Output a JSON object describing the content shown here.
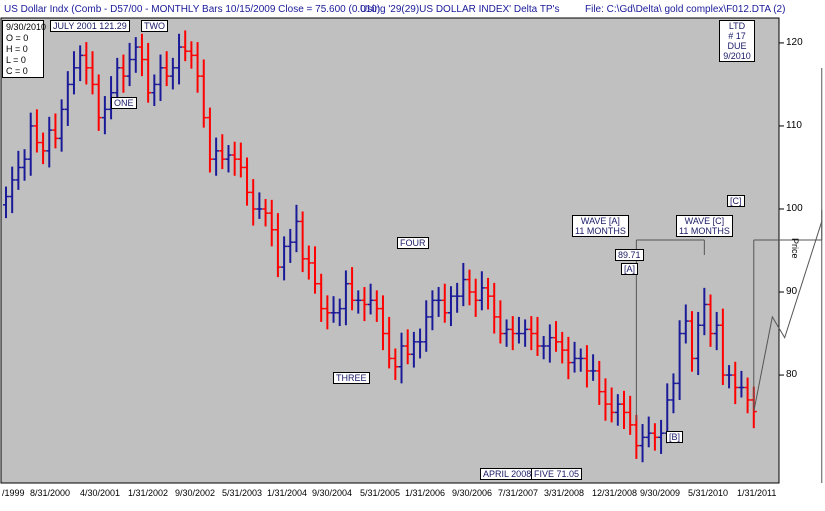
{
  "header": {
    "title": "US Dollar Indx (Comb - D57/00  - MONTHLY Bars  10/15/2009 Close = 75.600 (0.010)",
    "using": "Using '29(29)US DOLLAR INDEX' Delta TP's",
    "file": "File: C:\\Gd\\Delta\\ gold complex\\F012.DTA (2)"
  },
  "ohlc_box": {
    "date": "9/30/2010",
    "o": "O = 0",
    "h": "H = 0",
    "l": "L = 0",
    "c": "C = 0"
  },
  "annotations": {
    "july2001": "JULY 2001  121.29",
    "one": "ONE",
    "two": "TWO",
    "three": "THREE",
    "four": "FOUR",
    "april2008": "APRIL 2008",
    "five": "FIVE  71.05",
    "wave_a_1": "WAVE [A]",
    "wave_a_2": "11 MONTHS",
    "wave_c_1": "WAVE [C]",
    "wave_c_2": "11 MONTHS",
    "price_8971": "89.71",
    "a_mark": "[A]",
    "b_mark": "[B]",
    "c_mark": "[C]",
    "ltd_1": "LTD",
    "ltd_2": "# 17",
    "ltd_3": "DUE",
    "ltd_4": "9/2010"
  },
  "chart_data": {
    "type": "ohlc",
    "title": "US Dollar Indx - MONTHLY Bars",
    "ylabel": "Price",
    "ylim": [
      67,
      123
    ],
    "yticks": [
      80,
      90,
      100,
      110,
      120
    ],
    "xticks": [
      "/1999",
      "8/31/2000",
      "4/30/2001",
      "1/31/2002",
      "9/30/2002",
      "5/31/2003",
      "1/31/2004",
      "9/30/2004",
      "5/31/2005",
      "1/31/2006",
      "9/30/2006",
      "7/31/2007",
      "3/31/2008",
      "12/31/2008",
      "9/30/2009",
      "5/31/2010",
      "1/31/2011"
    ],
    "colors": {
      "up": "#1a1a99",
      "down": "#ff0000",
      "background": "#c0c0c0"
    },
    "bars": [
      {
        "date": "1999-09",
        "close": 101.5
      },
      {
        "date": "1999-10",
        "close": 103.5
      },
      {
        "date": "1999-11",
        "close": 105
      },
      {
        "date": "1999-12",
        "close": 106
      },
      {
        "date": "2000-01",
        "close": 110
      },
      {
        "date": "2000-02",
        "close": 108
      },
      {
        "date": "2000-03",
        "close": 107
      },
      {
        "date": "2000-04",
        "close": 109.5
      },
      {
        "date": "2000-05",
        "close": 108.5
      },
      {
        "date": "2000-06",
        "close": 112
      },
      {
        "date": "2000-07",
        "close": 115
      },
      {
        "date": "2000-08",
        "close": 117
      },
      {
        "date": "2000-09",
        "close": 118.5
      },
      {
        "date": "2000-10",
        "close": 117
      },
      {
        "date": "2000-11",
        "close": 115
      },
      {
        "date": "2000-12",
        "close": 111
      },
      {
        "date": "2001-01",
        "close": 112
      },
      {
        "date": "2001-02",
        "close": 114
      },
      {
        "date": "2001-03",
        "close": 117
      },
      {
        "date": "2001-04",
        "close": 116
      },
      {
        "date": "2001-05",
        "close": 118
      },
      {
        "date": "2001-06",
        "close": 119.5
      },
      {
        "date": "2001-07",
        "close": 118
      },
      {
        "date": "2001-08",
        "close": 114
      },
      {
        "date": "2001-09",
        "close": 115
      },
      {
        "date": "2001-10",
        "close": 117
      },
      {
        "date": "2001-11",
        "close": 116
      },
      {
        "date": "2001-12",
        "close": 117
      },
      {
        "date": "2002-01",
        "close": 119.5
      },
      {
        "date": "2002-02",
        "close": 119
      },
      {
        "date": "2002-03",
        "close": 118.5
      },
      {
        "date": "2002-04",
        "close": 116
      },
      {
        "date": "2002-05",
        "close": 111
      },
      {
        "date": "2002-06",
        "close": 106
      },
      {
        "date": "2002-07",
        "close": 107
      },
      {
        "date": "2002-08",
        "close": 106
      },
      {
        "date": "2002-09",
        "close": 106.5
      },
      {
        "date": "2002-10",
        "close": 106
      },
      {
        "date": "2002-11",
        "close": 105
      },
      {
        "date": "2002-12",
        "close": 102
      },
      {
        "date": "2003-01",
        "close": 100
      },
      {
        "date": "2003-02",
        "close": 100
      },
      {
        "date": "2003-03",
        "close": 99.5
      },
      {
        "date": "2003-04",
        "close": 97.5
      },
      {
        "date": "2003-05",
        "close": 93
      },
      {
        "date": "2003-06",
        "close": 95.5
      },
      {
        "date": "2003-07",
        "close": 96
      },
      {
        "date": "2003-08",
        "close": 98.5
      },
      {
        "date": "2003-09",
        "close": 94
      },
      {
        "date": "2003-10",
        "close": 93.5
      },
      {
        "date": "2003-11",
        "close": 91
      },
      {
        "date": "2003-12",
        "close": 88
      },
      {
        "date": "2004-01",
        "close": 87.5
      },
      {
        "date": "2004-02",
        "close": 87.5
      },
      {
        "date": "2004-03",
        "close": 88
      },
      {
        "date": "2004-04",
        "close": 91
      },
      {
        "date": "2004-05",
        "close": 89
      },
      {
        "date": "2004-06",
        "close": 89
      },
      {
        "date": "2004-07",
        "close": 88.5
      },
      {
        "date": "2004-08",
        "close": 89
      },
      {
        "date": "2004-09",
        "close": 88
      },
      {
        "date": "2004-10",
        "close": 85
      },
      {
        "date": "2004-11",
        "close": 82
      },
      {
        "date": "2004-12",
        "close": 81
      },
      {
        "date": "2005-01",
        "close": 83.5
      },
      {
        "date": "2005-02",
        "close": 82.5
      },
      {
        "date": "2005-03",
        "close": 84
      },
      {
        "date": "2005-04",
        "close": 84
      },
      {
        "date": "2005-05",
        "close": 87
      },
      {
        "date": "2005-06",
        "close": 89
      },
      {
        "date": "2005-07",
        "close": 89
      },
      {
        "date": "2005-08",
        "close": 87.5
      },
      {
        "date": "2005-09",
        "close": 89.5
      },
      {
        "date": "2005-10",
        "close": 89.5
      },
      {
        "date": "2005-11",
        "close": 91.5
      },
      {
        "date": "2005-12",
        "close": 90
      },
      {
        "date": "2006-01",
        "close": 89
      },
      {
        "date": "2006-02",
        "close": 90.5
      },
      {
        "date": "2006-03",
        "close": 89.5
      },
      {
        "date": "2006-04",
        "close": 87
      },
      {
        "date": "2006-05",
        "close": 85
      },
      {
        "date": "2006-06",
        "close": 85.5
      },
      {
        "date": "2006-07",
        "close": 85
      },
      {
        "date": "2006-08",
        "close": 85
      },
      {
        "date": "2006-09",
        "close": 85.5
      },
      {
        "date": "2006-10",
        "close": 85
      },
      {
        "date": "2006-11",
        "close": 83.5
      },
      {
        "date": "2006-12",
        "close": 83.5
      },
      {
        "date": "2007-01",
        "close": 84.5
      },
      {
        "date": "2007-02",
        "close": 84
      },
      {
        "date": "2007-03",
        "close": 83
      },
      {
        "date": "2007-04",
        "close": 81.5
      },
      {
        "date": "2007-05",
        "close": 82
      },
      {
        "date": "2007-06",
        "close": 82
      },
      {
        "date": "2007-07",
        "close": 80.5
      },
      {
        "date": "2007-08",
        "close": 80.5
      },
      {
        "date": "2007-09",
        "close": 78
      },
      {
        "date": "2007-10",
        "close": 76.5
      },
      {
        "date": "2007-11",
        "close": 75.5
      },
      {
        "date": "2007-12",
        "close": 76.5
      },
      {
        "date": "2008-01",
        "close": 75.5
      },
      {
        "date": "2008-02",
        "close": 74
      },
      {
        "date": "2008-03",
        "close": 71.5
      },
      {
        "date": "2008-04",
        "close": 72.5
      },
      {
        "date": "2008-05",
        "close": 73
      },
      {
        "date": "2008-06",
        "close": 72.5
      },
      {
        "date": "2008-07",
        "close": 73
      },
      {
        "date": "2008-08",
        "close": 77
      },
      {
        "date": "2008-09",
        "close": 79
      },
      {
        "date": "2008-10",
        "close": 85
      },
      {
        "date": "2008-11",
        "close": 86.5
      },
      {
        "date": "2008-12",
        "close": 82
      },
      {
        "date": "2009-01",
        "close": 86
      },
      {
        "date": "2009-02",
        "close": 88.5
      },
      {
        "date": "2009-03",
        "close": 85
      },
      {
        "date": "2009-04",
        "close": 86
      },
      {
        "date": "2009-05",
        "close": 80
      },
      {
        "date": "2009-06",
        "close": 80
      },
      {
        "date": "2009-07",
        "close": 78.5
      },
      {
        "date": "2009-08",
        "close": 78.5
      },
      {
        "date": "2009-09",
        "close": 77
      },
      {
        "date": "2009-10",
        "close": 75.6
      }
    ],
    "projection": [
      {
        "date": "2009-10",
        "value": 75.6
      },
      {
        "date": "2010-01",
        "value": 87
      },
      {
        "date": "2010-03",
        "value": 84.5
      },
      {
        "date": "2010-09",
        "value": 98.5
      }
    ]
  }
}
